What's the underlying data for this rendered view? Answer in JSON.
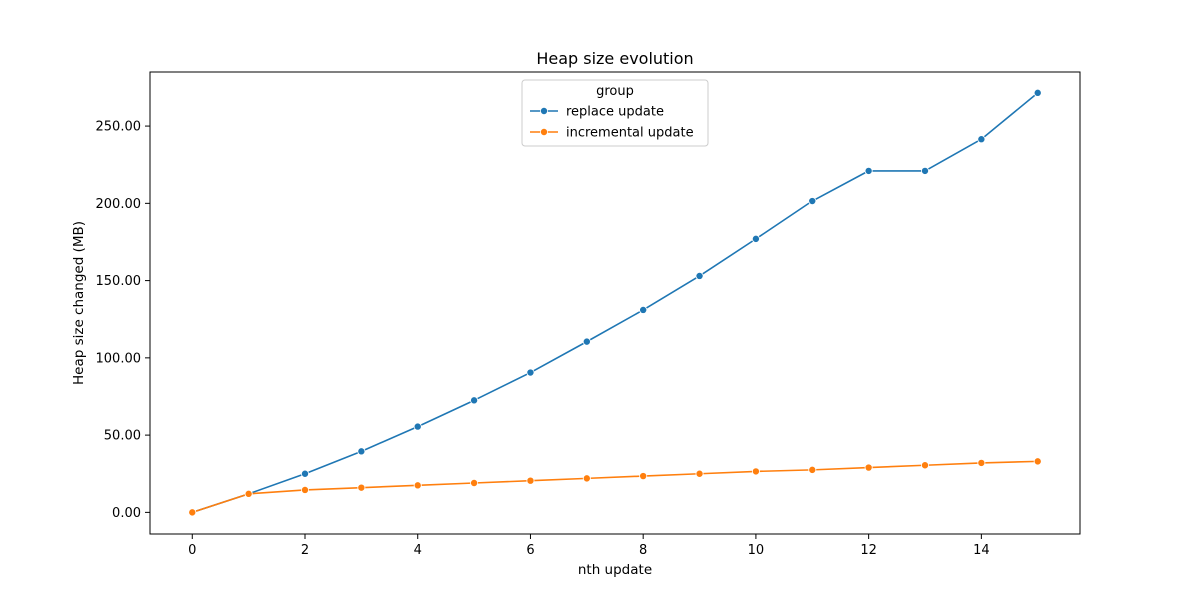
{
  "chart_data": {
    "type": "line",
    "title": "Heap size evolution",
    "xlabel": "nth update",
    "ylabel": "Heap size changed (MB)",
    "xlim": [
      -0.75,
      15.75
    ],
    "ylim": [
      -14,
      285
    ],
    "x_ticks": [
      0,
      2,
      4,
      6,
      8,
      10,
      12,
      14
    ],
    "y_ticks": [
      0,
      50,
      100,
      150,
      200,
      250
    ],
    "y_tick_labels": [
      "0.00",
      "50.00",
      "100.00",
      "150.00",
      "200.00",
      "250.00"
    ],
    "grid": false,
    "legend": {
      "title": "group",
      "placement": "top-center"
    },
    "x": [
      0,
      1,
      2,
      3,
      4,
      5,
      6,
      7,
      8,
      9,
      10,
      11,
      12,
      13,
      14,
      15
    ],
    "series": [
      {
        "name": "replace update",
        "color": "#1f77b4",
        "values": [
          0,
          12,
          25,
          39.5,
          55.5,
          72.5,
          90.5,
          110.5,
          131,
          153,
          177,
          201.5,
          221,
          221,
          241.5,
          271.5
        ]
      },
      {
        "name": "incremental update",
        "color": "#ff7f0e",
        "values": [
          0,
          12,
          14.5,
          16,
          17.5,
          19,
          20.5,
          22,
          23.5,
          25,
          26.5,
          27.5,
          29,
          30.5,
          32,
          33
        ]
      }
    ]
  }
}
